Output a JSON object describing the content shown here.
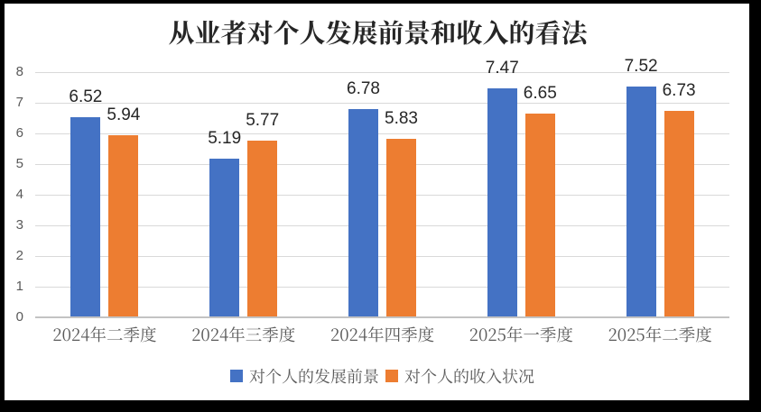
{
  "frame": {
    "border_color": "#000000",
    "canvas_color": "#ffffff"
  },
  "chart_data": {
    "type": "bar",
    "title": "从业者对个人发展前景和收入的看法",
    "categories": [
      "2024年二季度",
      "2024年三季度",
      "2024年四季度",
      "2025年一季度",
      "2025年二季度"
    ],
    "series": [
      {
        "name": "对个人的发展前景",
        "color": "#4472c4",
        "values": [
          6.52,
          5.19,
          6.78,
          7.47,
          7.52
        ]
      },
      {
        "name": "对个人的收入状况",
        "color": "#ed7d31",
        "values": [
          5.94,
          5.77,
          5.83,
          6.65,
          6.73
        ]
      }
    ],
    "xlabel": "",
    "ylabel": "",
    "y_axis": {
      "min": 0,
      "max": 8,
      "step": 1,
      "ticks": [
        "0",
        "1",
        "2",
        "3",
        "4",
        "5",
        "6",
        "7",
        "8"
      ]
    },
    "grid": true,
    "gridline_color": "#d9d9d9",
    "axis_line_color": "#c3c3c3",
    "legend_position": "bottom",
    "data_labels": true
  }
}
